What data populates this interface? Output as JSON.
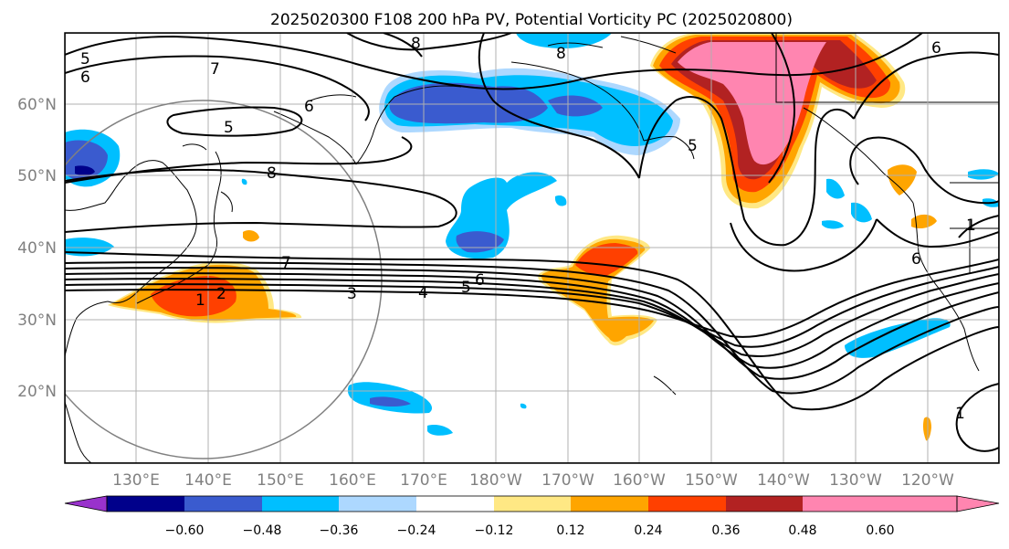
{
  "title": "2025020300 F108 200 hPa PV, Potential Vorticity PC (2025020800)",
  "latitude_labels": [
    "60°N",
    "50°N",
    "40°N",
    "30°N",
    "20°N"
  ],
  "longitude_labels": [
    "130°E",
    "140°E",
    "150°E",
    "160°E",
    "170°E",
    "180°W",
    "170°W",
    "160°W",
    "150°W",
    "140°W",
    "130°W",
    "120°W"
  ],
  "contour_labels": [
    "5",
    "6",
    "7",
    "6",
    "5",
    "8",
    "7",
    "1",
    "2",
    "3",
    "4",
    "5",
    "6",
    "6",
    "5",
    "6",
    "1",
    "8",
    "8",
    "1"
  ],
  "colorbar": {
    "tick_labels": [
      "−0.60",
      "−0.48",
      "−0.36",
      "−0.24",
      "−0.12",
      "0.12",
      "0.24",
      "0.36",
      "0.48",
      "0.60"
    ],
    "colors": [
      "#9932CC",
      "#00008B",
      "#3A5BCF",
      "#00BFFF",
      "#ADD8FF",
      "#FFFFFF",
      "#FFE884",
      "#FFA500",
      "#FF4000",
      "#B22222",
      "#FF85B0"
    ]
  },
  "fill_colors": {
    "dark_navy": "#00008B",
    "royal_blue": "#3A5BCF",
    "deep_sky_blue": "#00BFFF",
    "light_blue": "#ADD8FF",
    "light_yellow": "#FFE884",
    "orange": "#FFA500",
    "red_orange": "#FF4000",
    "firebrick": "#B22222",
    "pink": "#FF85B0"
  }
}
